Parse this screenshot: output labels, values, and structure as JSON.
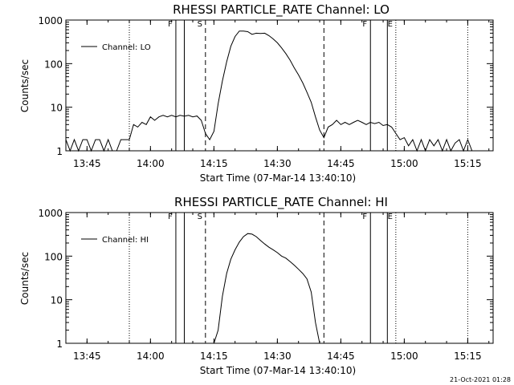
{
  "footer_timestamp": "21-Oct-2021 01:28",
  "chart_data": [
    {
      "type": "line",
      "title": "RHESSI PARTICLE_RATE Channel: LO",
      "xlabel": "Start Time (07-Mar-14 13:40:10)",
      "ylabel": "Counts/sec",
      "yscale": "log",
      "ylim": [
        1,
        1000
      ],
      "xlim": [
        "13:40",
        "15:21"
      ],
      "x_ticks": [
        "13:45",
        "14:00",
        "14:15",
        "14:30",
        "14:45",
        "15:00",
        "15:15"
      ],
      "y_ticks": [
        "1",
        "10",
        "100",
        "1000"
      ],
      "legend": {
        "position": "top-left",
        "label": "Channel: LO"
      },
      "markers": [
        {
          "time": "13:55",
          "style": "dotted",
          "label": ""
        },
        {
          "time": "14:06",
          "style": "solid",
          "label": "F"
        },
        {
          "time": "14:08",
          "style": "solid",
          "label": ""
        },
        {
          "time": "14:13",
          "style": "dashed",
          "label": "S"
        },
        {
          "time": "14:41",
          "style": "dashed",
          "label": ""
        },
        {
          "time": "14:52",
          "style": "solid",
          "label": "F"
        },
        {
          "time": "14:56",
          "style": "solid",
          "label": ""
        },
        {
          "time": "14:58",
          "style": "dotted",
          "label": "E"
        },
        {
          "time": "15:15",
          "style": "dotted",
          "label": ""
        }
      ],
      "series": [
        {
          "name": "Channel: LO",
          "x": [
            "13:40",
            "13:41",
            "13:42",
            "13:43",
            "13:44",
            "13:45",
            "13:46",
            "13:47",
            "13:48",
            "13:49",
            "13:50",
            "13:51",
            "13:52",
            "13:53",
            "13:54",
            "13:55",
            "13:56",
            "13:57",
            "13:58",
            "13:59",
            "14:00",
            "14:01",
            "14:02",
            "14:03",
            "14:04",
            "14:05",
            "14:06",
            "14:07",
            "14:08",
            "14:09",
            "14:10",
            "14:11",
            "14:12",
            "14:13",
            "14:14",
            "14:15",
            "14:16",
            "14:17",
            "14:18",
            "14:19",
            "14:20",
            "14:21",
            "14:22",
            "14:23",
            "14:24",
            "14:25",
            "14:26",
            "14:27",
            "14:28",
            "14:29",
            "14:30",
            "14:31",
            "14:32",
            "14:33",
            "14:34",
            "14:35",
            "14:36",
            "14:37",
            "14:38",
            "14:39",
            "14:40",
            "14:41",
            "14:42",
            "14:43",
            "14:44",
            "14:45",
            "14:46",
            "14:47",
            "14:48",
            "14:49",
            "14:50",
            "14:51",
            "14:52",
            "14:53",
            "14:54",
            "14:55",
            "14:56",
            "14:57",
            "14:58",
            "14:59",
            "15:00",
            "15:01",
            "15:02",
            "15:03",
            "15:04",
            "15:05",
            "15:06",
            "15:07",
            "15:08",
            "15:09",
            "15:10",
            "15:11",
            "15:12",
            "15:13",
            "15:14",
            "15:15",
            "15:16",
            "15:17",
            "15:18",
            "15:19",
            "15:20",
            "15:21"
          ],
          "values": [
            1.8,
            1,
            1.8,
            1,
            1.8,
            1.8,
            1,
            1.8,
            1.8,
            1,
            1.8,
            1,
            1,
            1.8,
            1.8,
            1.8,
            4,
            3.5,
            4.5,
            4,
            6,
            5,
            6,
            6.5,
            6,
            6.5,
            6,
            6.5,
            6.2,
            6.5,
            6,
            6.3,
            5,
            2.5,
            1.8,
            2.8,
            12,
            40,
            110,
            250,
            420,
            560,
            560,
            540,
            470,
            500,
            490,
            500,
            440,
            370,
            300,
            230,
            170,
            120,
            80,
            55,
            36,
            22,
            13,
            6,
            3,
            2,
            3.5,
            4,
            5,
            4,
            4.5,
            4,
            4.5,
            5,
            4.5,
            4,
            4.5,
            4.2,
            4.5,
            3.8,
            4,
            3.5,
            2.5,
            1.8,
            2,
            1.3,
            1.8,
            1,
            1.8,
            1,
            1.8,
            1.3,
            1.8,
            1,
            1.8,
            1,
            1.5,
            1.8,
            1,
            1.8,
            1,
            1,
            1,
            1,
            1,
            1
          ]
        }
      ]
    },
    {
      "type": "line",
      "title": "RHESSI PARTICLE_RATE Channel: HI",
      "xlabel": "Start Time (07-Mar-14 13:40:10)",
      "ylabel": "Counts/sec",
      "yscale": "log",
      "ylim": [
        1,
        1000
      ],
      "xlim": [
        "13:40",
        "15:21"
      ],
      "x_ticks": [
        "13:45",
        "14:00",
        "14:15",
        "14:30",
        "14:45",
        "15:00",
        "15:15"
      ],
      "y_ticks": [
        "1",
        "10",
        "100",
        "1000"
      ],
      "legend": {
        "position": "top-left",
        "label": "Channel: HI"
      },
      "markers": [
        {
          "time": "13:55",
          "style": "dotted",
          "label": ""
        },
        {
          "time": "14:06",
          "style": "solid",
          "label": "F"
        },
        {
          "time": "14:08",
          "style": "solid",
          "label": ""
        },
        {
          "time": "14:13",
          "style": "dashed",
          "label": "S"
        },
        {
          "time": "14:41",
          "style": "dashed",
          "label": ""
        },
        {
          "time": "14:52",
          "style": "solid",
          "label": "F"
        },
        {
          "time": "14:56",
          "style": "solid",
          "label": ""
        },
        {
          "time": "14:58",
          "style": "dotted",
          "label": "E"
        },
        {
          "time": "15:15",
          "style": "dotted",
          "label": ""
        }
      ],
      "series": [
        {
          "name": "Channel: HI",
          "x": [
            "14:15",
            "14:16",
            "14:17",
            "14:18",
            "14:19",
            "14:20",
            "14:21",
            "14:22",
            "14:23",
            "14:24",
            "14:25",
            "14:26",
            "14:27",
            "14:28",
            "14:29",
            "14:30",
            "14:31",
            "14:32",
            "14:33",
            "14:34",
            "14:35",
            "14:36",
            "14:37",
            "14:38",
            "14:39",
            "14:40"
          ],
          "values": [
            1,
            2,
            12,
            40,
            85,
            140,
            210,
            280,
            330,
            320,
            280,
            230,
            190,
            160,
            140,
            120,
            100,
            90,
            75,
            62,
            50,
            40,
            30,
            15,
            3,
            1
          ]
        }
      ]
    }
  ]
}
